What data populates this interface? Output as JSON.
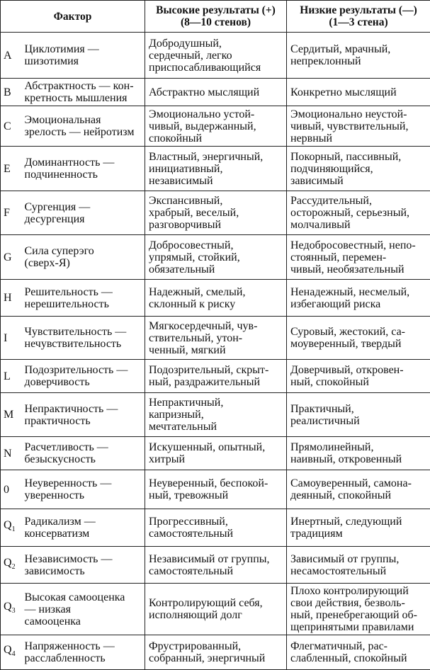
{
  "headers": [
    "Фактор",
    "Высокие результаты (+)\n(8—10 стенов)",
    "Низкие результаты (—)\n(1—3 стена)"
  ],
  "rows": [
    {
      "code": "A",
      "sub": "",
      "name": "Циклотимия —\nшизотимия",
      "high": "Добродушный,\nсердечный, легко\nприспосабливающийся",
      "low": "Сердитый, мрачный,\nнепреклонный"
    },
    {
      "code": "B",
      "sub": "",
      "name": "Абстрактность — кон-\nкретность мышления",
      "high": "Абстрактно мыслящий",
      "low": "Конкретно мыслящий"
    },
    {
      "code": "C",
      "sub": "",
      "name": "Эмоциональная\nзрелость — нейротизм",
      "high": "Эмоционально устой-\nчивый, выдержанный,\nспокойный",
      "low": "Эмоционально неустой-\nчивый, чувствительный,\nнервный"
    },
    {
      "code": "E",
      "sub": "",
      "name": "Доминантность —\nподчиненность",
      "high": "Властный, энергичный,\nинициативный,\nнезависимый",
      "low": "Покорный, пассивный,\nподчиняющийся,\nзависимый"
    },
    {
      "code": "F",
      "sub": "",
      "name": "Сургенция —\nдесургенция",
      "high": "Экспансивный,\nхрабрый, веселый,\nразговорчивый",
      "low": "Рассудительный,\nосторожный, серьезный,\nмолчаливый"
    },
    {
      "code": "G",
      "sub": "",
      "name": "Сила суперэго\n(сверх-Я)",
      "high": "Добросовестный,\nупрямый, стойкий,\nобязательный",
      "low": "Недобросовестный, непо-\nстоянный, перемен-\nчивый, необязательный"
    },
    {
      "code": "H",
      "sub": "",
      "name": "Решительность —\nнерешительность",
      "high": "Надежный, смелый,\nсклонный к риску",
      "low": "Ненадежный, несмелый,\nизбегающий риска"
    },
    {
      "code": "I",
      "sub": "",
      "name": "Чувствительность —\nнечувствительность",
      "high": "Мягкосердечный, чув-\nствительный, утон-\nченный, мягкий",
      "low": "Суровый, жестокий, са-\nмоуверенный, твердый"
    },
    {
      "code": "L",
      "sub": "",
      "name": "Подозрительность —\nдоверчивость",
      "high": "Подозрительный, скрыт-\nный, раздражительный",
      "low": "Доверчивый, откровен-\nный, спокойный"
    },
    {
      "code": "M",
      "sub": "",
      "name": "Непрактичность —\nпрактичность",
      "high": "Непрактичный,\nкапризный,\nмечтательный",
      "low": "Практичный,\nреалистичный"
    },
    {
      "code": "N",
      "sub": "",
      "name": "Расчетливость —\nбезыскусность",
      "high": "Искушенный, опытный,\nхитрый",
      "low": "Прямолинейный,\nнаивный, откровенный"
    },
    {
      "code": "0",
      "sub": "",
      "name": "Неуверенность —\nуверенность",
      "high": "Неуверенный, беспокой-\nный, тревожный",
      "low": "Самоуверенный, самона-\nдеянный, спокойный"
    },
    {
      "code": "Q",
      "sub": "1",
      "name": "Радикализм —\nконсерватизм",
      "high": "Прогрессивный,\nсамостоятельный",
      "low": "Инертный, следующий\nтрадициям"
    },
    {
      "code": "Q",
      "sub": "2",
      "name": "Независимость —\nзависимость",
      "high": "Независимый от группы,\nсамостоятельный",
      "low": "Зависимый от группы,\nнесамостоятельный"
    },
    {
      "code": "Q",
      "sub": "3",
      "name": "Высокая самооценка\n— низкая\nсамооценка",
      "high": "Контролирующий себя,\nисполняющий долг",
      "low": "Плохо контролирующий\nсвои действия, безволь-\nный, пренебрегающий об-\nщепринятыми правилами"
    },
    {
      "code": "Q",
      "sub": "4",
      "name": "Напряженность —\nрасслабленность",
      "high": "Фрустрированный,\nсобранный, энергичный",
      "low": "Флегматичный, рас-\nслабленный, спокойный"
    }
  ]
}
